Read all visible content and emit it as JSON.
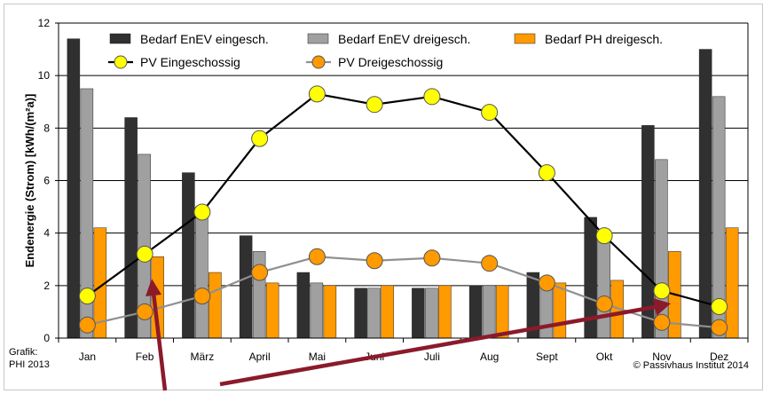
{
  "chart_data": {
    "type": "bar",
    "categories": [
      "Jan",
      "Feb",
      "März",
      "April",
      "Mai",
      "Juni",
      "Juli",
      "Aug",
      "Sept",
      "Okt",
      "Nov",
      "Dez"
    ],
    "ylabel": "Endenergie (Strom) [kWh/(m²a)]",
    "ylim": [
      0,
      12
    ],
    "yticks": [
      0,
      2,
      4,
      6,
      8,
      10,
      12
    ],
    "grid": true,
    "legend": "top",
    "series": [
      {
        "name": "Bedarf EnEV eingesch.",
        "kind": "bar",
        "color": "#303030",
        "values": [
          11.4,
          8.4,
          6.3,
          3.9,
          2.5,
          1.9,
          1.9,
          2.0,
          2.5,
          4.6,
          8.1,
          11.0
        ]
      },
      {
        "name": "Bedarf EnEV dreigesch.",
        "kind": "bar",
        "color": "#a0a0a0",
        "values": [
          9.5,
          7.0,
          5.0,
          3.3,
          2.1,
          1.9,
          1.9,
          2.0,
          2.0,
          3.7,
          6.8,
          9.2
        ]
      },
      {
        "name": "Bedarf PH dreigesch.",
        "kind": "bar",
        "color": "#ff9a00",
        "values": [
          4.2,
          3.1,
          2.5,
          2.1,
          2.0,
          2.0,
          2.0,
          2.0,
          2.1,
          2.2,
          3.3,
          4.2
        ]
      },
      {
        "name": "PV Eingeschossig",
        "kind": "line",
        "color": "#000000",
        "marker": "#ffff00",
        "values": [
          1.6,
          3.2,
          4.8,
          7.6,
          9.3,
          8.9,
          9.2,
          8.6,
          6.3,
          3.9,
          1.8,
          1.2
        ]
      },
      {
        "name": "PV Dreigeschossig",
        "kind": "line",
        "color": "#909090",
        "marker": "#ff9a00",
        "values": [
          0.5,
          1.0,
          1.6,
          2.5,
          3.1,
          2.95,
          3.05,
          2.85,
          2.1,
          1.3,
          0.6,
          0.4
        ]
      }
    ],
    "annotations": [
      {
        "type": "arrow",
        "color": "#8b1a2b",
        "from_category": "Feb",
        "direction": "up"
      },
      {
        "type": "arrow",
        "color": "#8b1a2b",
        "to_category": "Nov",
        "direction": "up-right"
      }
    ]
  },
  "credits": {
    "left_line1": "Grafik:",
    "left_line2": "PHI 2013",
    "right": "© Passivhaus Institut 2014"
  }
}
